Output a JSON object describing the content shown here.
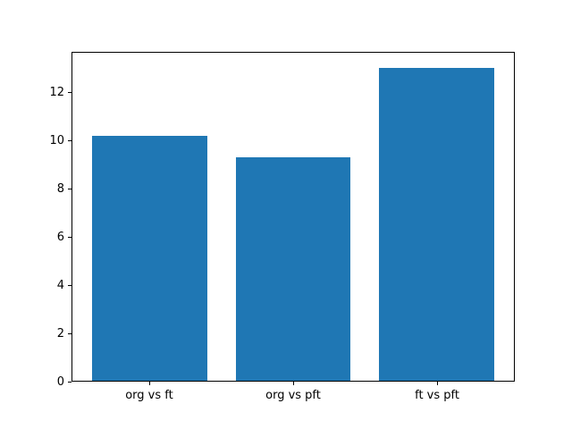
{
  "chart_data": {
    "type": "bar",
    "title": "",
    "xlabel": "",
    "ylabel": "",
    "categories": [
      "org vs ft",
      "org vs pft",
      "ft vs pft"
    ],
    "values": [
      10.2,
      9.3,
      13.0
    ],
    "bar_color": "#1f77b4",
    "bar_width": 0.8,
    "xlim": [
      -0.54,
      2.54
    ],
    "ylim": [
      0,
      13.65
    ],
    "yticks": [
      0,
      2,
      4,
      6,
      8,
      10,
      12
    ],
    "grid": false,
    "legend": null,
    "axes_color": "#000000",
    "background": "#ffffff"
  }
}
